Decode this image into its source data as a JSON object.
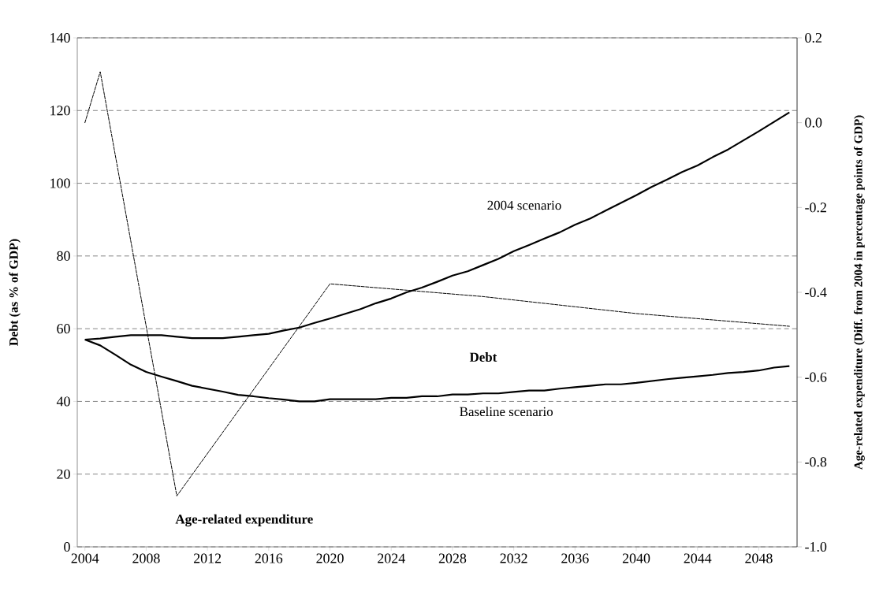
{
  "chart_data": {
    "type": "line",
    "ylabel": "Debt (as % of GDP)",
    "y2label": "Age-related  expenditure (Diff. from 2004 in percentage points of GDP)",
    "annotations": [
      "Debt"
    ],
    "xlim": [
      2003.5,
      2050.5
    ],
    "xticks": [
      2004,
      2008,
      2012,
      2016,
      2020,
      2024,
      2028,
      2032,
      2036,
      2040,
      2044,
      2048
    ],
    "ylim": [
      0,
      140
    ],
    "yticks": [
      0,
      20,
      40,
      60,
      80,
      100,
      120,
      140
    ],
    "y2lim": [
      -1.0,
      0.2
    ],
    "y2ticks": [
      {
        "value": -1.0,
        "label": "-1.0"
      },
      {
        "value": -0.8,
        "label": "-0.8"
      },
      {
        "value": -0.6,
        "label": "-0.6"
      },
      {
        "value": -0.4,
        "label": "-0.4"
      },
      {
        "value": -0.2,
        "label": "-0.2"
      },
      {
        "value": 0.0,
        "label": "0.0"
      },
      {
        "value": 0.2,
        "label": "0.2"
      }
    ],
    "grid": "y",
    "x": [
      2004,
      2005,
      2006,
      2007,
      2008,
      2009,
      2010,
      2011,
      2012,
      2013,
      2014,
      2015,
      2016,
      2017,
      2018,
      2019,
      2020,
      2021,
      2022,
      2023,
      2024,
      2025,
      2026,
      2027,
      2028,
      2029,
      2030,
      2031,
      2032,
      2033,
      2034,
      2035,
      2036,
      2037,
      2038,
      2039,
      2040,
      2041,
      2042,
      2043,
      2044,
      2045,
      2046,
      2047,
      2048,
      2049,
      2050
    ],
    "series": [
      {
        "name": "2004 scenario",
        "color": "#000000",
        "line_style": "solid",
        "values": [
          57,
          57.3,
          57.8,
          58.2,
          58.2,
          58.2,
          57.8,
          57.4,
          57.4,
          57.4,
          57.8,
          58.2,
          58.6,
          59.5,
          60.3,
          61.6,
          62.8,
          64.1,
          65.4,
          67,
          68.3,
          70,
          71.3,
          72.9,
          74.6,
          75.8,
          77.5,
          79.2,
          81.3,
          83,
          84.8,
          86.5,
          88.6,
          90.3,
          92.5,
          94.6,
          96.7,
          99,
          101,
          103.1,
          104.9,
          107.2,
          109.3,
          111.8,
          114.3,
          116.9,
          119.5
        ]
      },
      {
        "name": "Baseline scenario",
        "color": "#000000",
        "line_style": "solid",
        "values": [
          57,
          55.4,
          52.8,
          50.1,
          48.1,
          46.8,
          45.6,
          44.3,
          43.5,
          42.7,
          41.8,
          41.4,
          40.9,
          40.5,
          40,
          40,
          40.6,
          40.6,
          40.6,
          40.6,
          41,
          41,
          41.4,
          41.4,
          41.9,
          41.9,
          42.2,
          42.2,
          42.6,
          43,
          43,
          43.5,
          43.9,
          44.3,
          44.7,
          44.7,
          45.1,
          45.6,
          46.1,
          46.5,
          46.9,
          47.3,
          47.8,
          48.1,
          48.5,
          49.3,
          49.7
        ]
      },
      {
        "name": "Age-related expenditure",
        "color": "#000000",
        "line_style": "dashed",
        "axis": "y2",
        "x": [
          2004,
          2005,
          2010,
          2020,
          2030,
          2040,
          2050
        ],
        "values": [
          0.0,
          0.12,
          -0.88,
          -0.38,
          -0.41,
          -0.45,
          -0.48
        ]
      }
    ]
  }
}
